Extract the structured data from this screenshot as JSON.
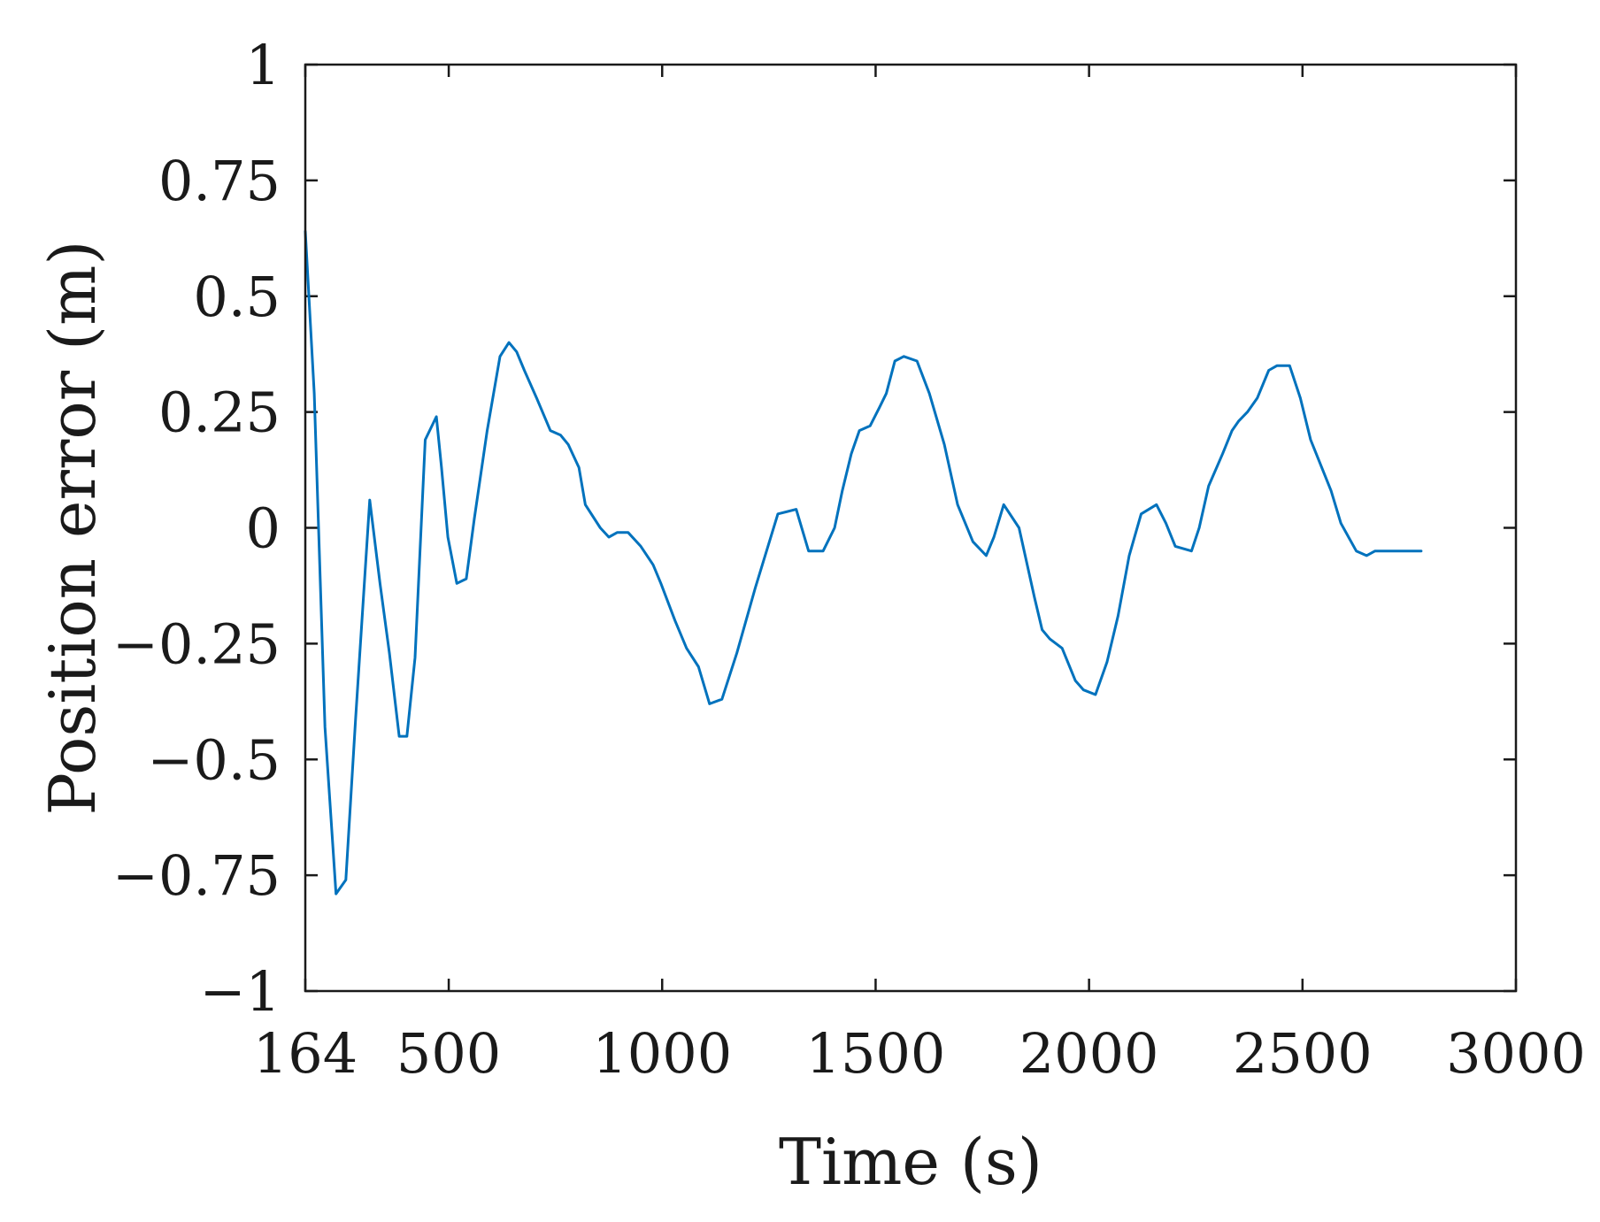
{
  "chart_data": {
    "type": "line",
    "title": "",
    "xlabel": "Time (s)",
    "ylabel": "Position error (m)",
    "xlim": [
      164,
      3000
    ],
    "ylim": [
      -1,
      1
    ],
    "xticks": [
      164,
      500,
      1000,
      1500,
      2000,
      2500,
      3000
    ],
    "xtick_labels": [
      "164",
      "500",
      "1000",
      "1500",
      "2000",
      "2500",
      "3000"
    ],
    "yticks": [
      1,
      0.75,
      0.5,
      0.25,
      0,
      -0.25,
      -0.5,
      -0.75,
      -1
    ],
    "ytick_labels": [
      "1",
      "0.75",
      "0.5",
      "0.25",
      "0",
      "−0.25",
      "−0.5",
      "−0.75",
      "−1"
    ],
    "grid": false,
    "legend": "none",
    "series": [
      {
        "color": "#0072BD",
        "x": [
          164,
          185,
          210,
          236,
          259,
          282,
          315,
          339,
          361,
          384,
          402,
          421,
          445,
          471,
          483,
          498,
          519,
          541,
          560,
          590,
          620,
          641,
          659,
          677,
          706,
          738,
          762,
          780,
          805,
          820,
          855,
          875,
          895,
          920,
          950,
          979,
          997,
          1030,
          1057,
          1085,
          1111,
          1140,
          1175,
          1218,
          1271,
          1314,
          1343,
          1377,
          1404,
          1422,
          1443,
          1462,
          1487,
          1509,
          1525,
          1545,
          1566,
          1597,
          1626,
          1661,
          1692,
          1728,
          1759,
          1777,
          1800,
          1836,
          1872,
          1890,
          1908,
          1937,
          1968,
          1987,
          2015,
          2042,
          2068,
          2094,
          2122,
          2158,
          2180,
          2202,
          2240,
          2258,
          2280,
          2313,
          2335,
          2350,
          2371,
          2394,
          2421,
          2440,
          2470,
          2495,
          2519,
          2567,
          2590,
          2626,
          2650,
          2670,
          2690,
          2720,
          2743,
          2757,
          2778
        ],
        "values": [
          0.64,
          0.29,
          -0.43,
          -0.79,
          -0.76,
          -0.41,
          0.06,
          -0.12,
          -0.27,
          -0.45,
          -0.45,
          -0.28,
          0.19,
          0.24,
          0.13,
          -0.02,
          -0.12,
          -0.11,
          0.02,
          0.21,
          0.37,
          0.4,
          0.38,
          0.34,
          0.28,
          0.21,
          0.2,
          0.18,
          0.13,
          0.05,
          0.0,
          -0.02,
          -0.01,
          -0.01,
          -0.04,
          -0.08,
          -0.12,
          -0.2,
          -0.26,
          -0.3,
          -0.38,
          -0.37,
          -0.27,
          -0.13,
          0.03,
          0.04,
          -0.05,
          -0.05,
          0.0,
          0.08,
          0.16,
          0.21,
          0.22,
          0.26,
          0.29,
          0.36,
          0.37,
          0.36,
          0.29,
          0.18,
          0.05,
          -0.03,
          -0.06,
          -0.02,
          0.05,
          0.0,
          -0.15,
          -0.22,
          -0.24,
          -0.26,
          -0.33,
          -0.35,
          -0.36,
          -0.29,
          -0.19,
          -0.06,
          0.03,
          0.05,
          0.01,
          -0.04,
          -0.05,
          0.0,
          0.09,
          0.16,
          0.21,
          0.23,
          0.25,
          0.28,
          0.34,
          0.35,
          0.35,
          0.28,
          0.19,
          0.08,
          0.01,
          -0.05,
          -0.06,
          -0.05,
          -0.05,
          -0.05,
          -0.05,
          -0.05,
          -0.05
        ]
      }
    ]
  }
}
